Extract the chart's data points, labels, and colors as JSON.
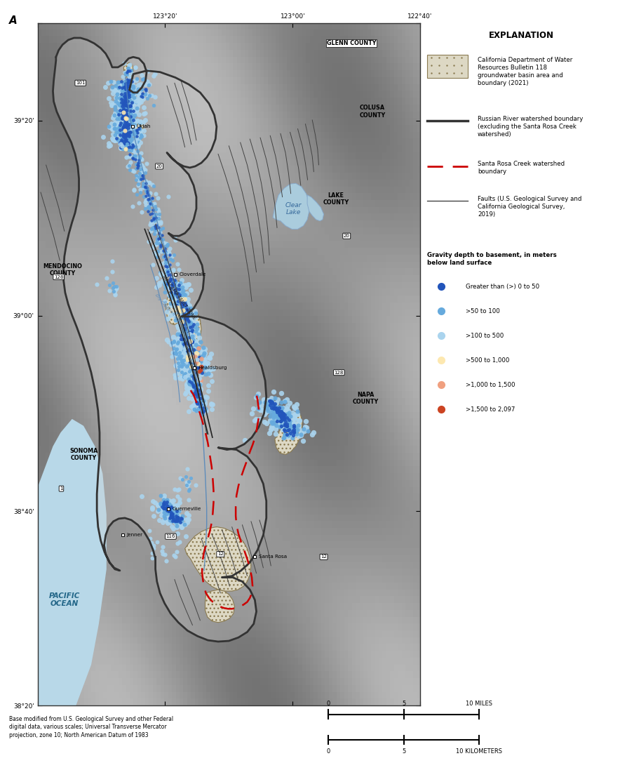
{
  "figure_width": 8.94,
  "figure_height": 10.87,
  "dpi": 100,
  "hillshade_color": "#c0c0c0",
  "ocean_color": "#b8d8e8",
  "lake_color": "#aaccdd",
  "footnote": "Base modified from U.S. Geological Survey and other Federal\ndigital data, various scales; Universal Transverse Mercator\nprojection, zone 10; North American Datum of 1983",
  "depth_items": [
    {
      "label": "Greater than (>) 0 to 50",
      "color": "#2255bb",
      "size": 6
    },
    {
      "label": ">50 to 100",
      "color": "#66aadd",
      "size": 6
    },
    {
      "label": ">100 to 500",
      "color": "#aad4ee",
      "size": 6
    },
    {
      "label": ">500 to 1,000",
      "color": "#fde8b0",
      "size": 6
    },
    {
      "label": ">1,000 to 1,500",
      "color": "#f0a080",
      "size": 6
    },
    {
      "label": ">1,500 to 2,097",
      "color": "#cc4422",
      "size": 6
    }
  ]
}
